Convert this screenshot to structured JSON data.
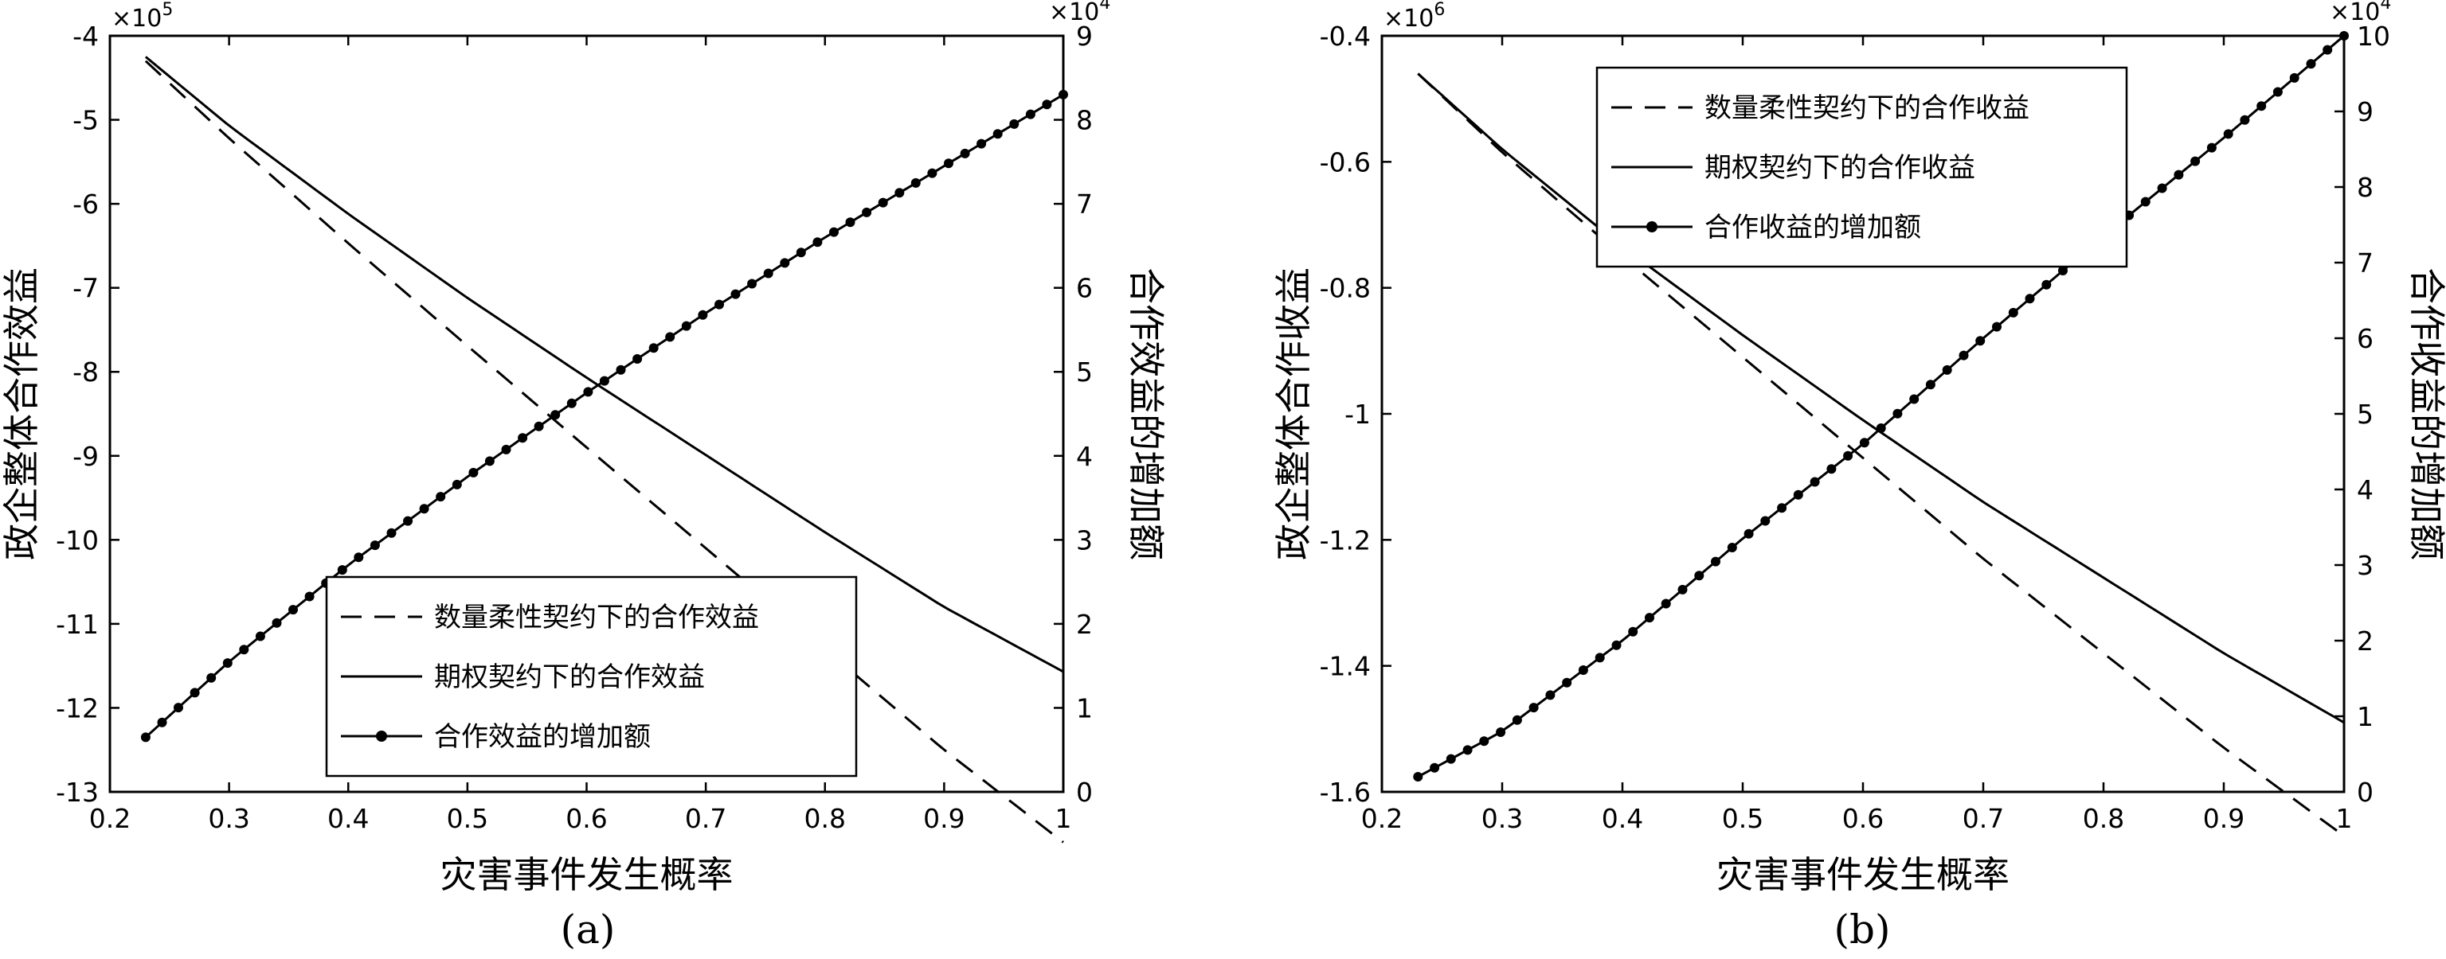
{
  "chart_data": [
    {
      "type": "line",
      "caption": "(a)",
      "xlabel": "灾害事件发生概率",
      "ylabel": "政企整体合作效益",
      "y2label": "合作效益的增加额",
      "xlim": [
        0.2,
        1
      ],
      "ylim": [
        -13,
        -4
      ],
      "y2lim": [
        0,
        9
      ],
      "y_exponent_label": "×10",
      "y_exponent_power": "5",
      "y2_exponent_label": "×10",
      "y2_exponent_power": "4",
      "x_ticks": [
        0.2,
        0.3,
        0.4,
        0.5,
        0.6,
        0.7,
        0.8,
        0.9,
        1
      ],
      "x_tick_labels": [
        "0.2",
        "0.3",
        "0.4",
        "0.5",
        "0.6",
        "0.7",
        "0.8",
        "0.9",
        "1"
      ],
      "y_ticks": [
        -13,
        -12,
        -11,
        -10,
        -9,
        -8,
        -7,
        -6,
        -5,
        -4
      ],
      "y_tick_labels": [
        "-13",
        "-12",
        "-11",
        "-10",
        "-9",
        "-8",
        "-7",
        "-6",
        "-5",
        "-4"
      ],
      "y2_ticks": [
        0,
        1,
        2,
        3,
        4,
        5,
        6,
        7,
        8,
        9
      ],
      "y2_tick_labels": [
        "0",
        "1",
        "2",
        "3",
        "4",
        "5",
        "6",
        "7",
        "8",
        "9"
      ],
      "legend_position": "bottom-right",
      "x": [
        0.23,
        0.3,
        0.4,
        0.5,
        0.6,
        0.7,
        0.8,
        0.9,
        1.0
      ],
      "series": [
        {
          "name": "数量柔性契约下的合作效益",
          "axis": "left",
          "style": "dashed",
          "values": [
            -4.3,
            -5.22,
            -6.47,
            -7.69,
            -8.9,
            -10.1,
            -11.3,
            -12.5,
            -13.6
          ]
        },
        {
          "name": "期权契约下的合作效益",
          "axis": "left",
          "style": "solid",
          "values": [
            -4.25,
            -5.07,
            -6.12,
            -7.12,
            -8.07,
            -8.99,
            -9.91,
            -10.8,
            -11.57
          ]
        },
        {
          "name": "合作效益的增加额",
          "axis": "right",
          "style": "line-with-markers",
          "values": [
            0.65,
            1.55,
            2.7,
            3.75,
            4.75,
            5.7,
            6.6,
            7.45,
            8.3
          ]
        }
      ]
    },
    {
      "type": "line",
      "caption": "(b)",
      "xlabel": "灾害事件发生概率",
      "ylabel": "政企整体合作收益",
      "y2label": "合作收益的增加额",
      "xlim": [
        0.2,
        1
      ],
      "ylim": [
        -1.6,
        -0.4
      ],
      "y2lim": [
        0,
        10
      ],
      "y_exponent_label": "×10",
      "y_exponent_power": "6",
      "y2_exponent_label": "×10",
      "y2_exponent_power": "4",
      "x_ticks": [
        0.2,
        0.3,
        0.4,
        0.5,
        0.6,
        0.7,
        0.8,
        0.9,
        1
      ],
      "x_tick_labels": [
        "0.2",
        "0.3",
        "0.4",
        "0.5",
        "0.6",
        "0.7",
        "0.8",
        "0.9",
        "1"
      ],
      "y_ticks": [
        -1.6,
        -1.4,
        -1.2,
        -1.0,
        -0.8,
        -0.6,
        -0.4
      ],
      "y_tick_labels": [
        "-1.6",
        "-1.4",
        "-1.2",
        "-1",
        "-0.8",
        "-0.6",
        "-0.4"
      ],
      "y2_ticks": [
        0,
        1,
        2,
        3,
        4,
        5,
        6,
        7,
        8,
        9,
        10
      ],
      "y2_tick_labels": [
        "0",
        "1",
        "2",
        "3",
        "4",
        "5",
        "6",
        "7",
        "8",
        "9",
        "10"
      ],
      "legend_position": "top-center",
      "x": [
        0.23,
        0.3,
        0.4,
        0.5,
        0.6,
        0.7,
        0.8,
        0.9,
        1.0
      ],
      "series": [
        {
          "name": "数量柔性契约下的合作收益",
          "axis": "left",
          "style": "dashed",
          "values": [
            -0.46,
            -0.585,
            -0.75,
            -0.91,
            -1.07,
            -1.23,
            -1.38,
            -1.53,
            -1.67
          ]
        },
        {
          "name": "期权契约下的合作收益",
          "axis": "left",
          "style": "solid",
          "values": [
            -0.46,
            -0.58,
            -0.735,
            -0.875,
            -1.01,
            -1.14,
            -1.26,
            -1.38,
            -1.49
          ]
        },
        {
          "name": "合作收益的增加额",
          "axis": "right",
          "style": "line-with-markers",
          "values": [
            0.2,
            0.8,
            2.0,
            3.35,
            4.6,
            6.0,
            7.35,
            8.65,
            10.0
          ]
        }
      ]
    }
  ]
}
